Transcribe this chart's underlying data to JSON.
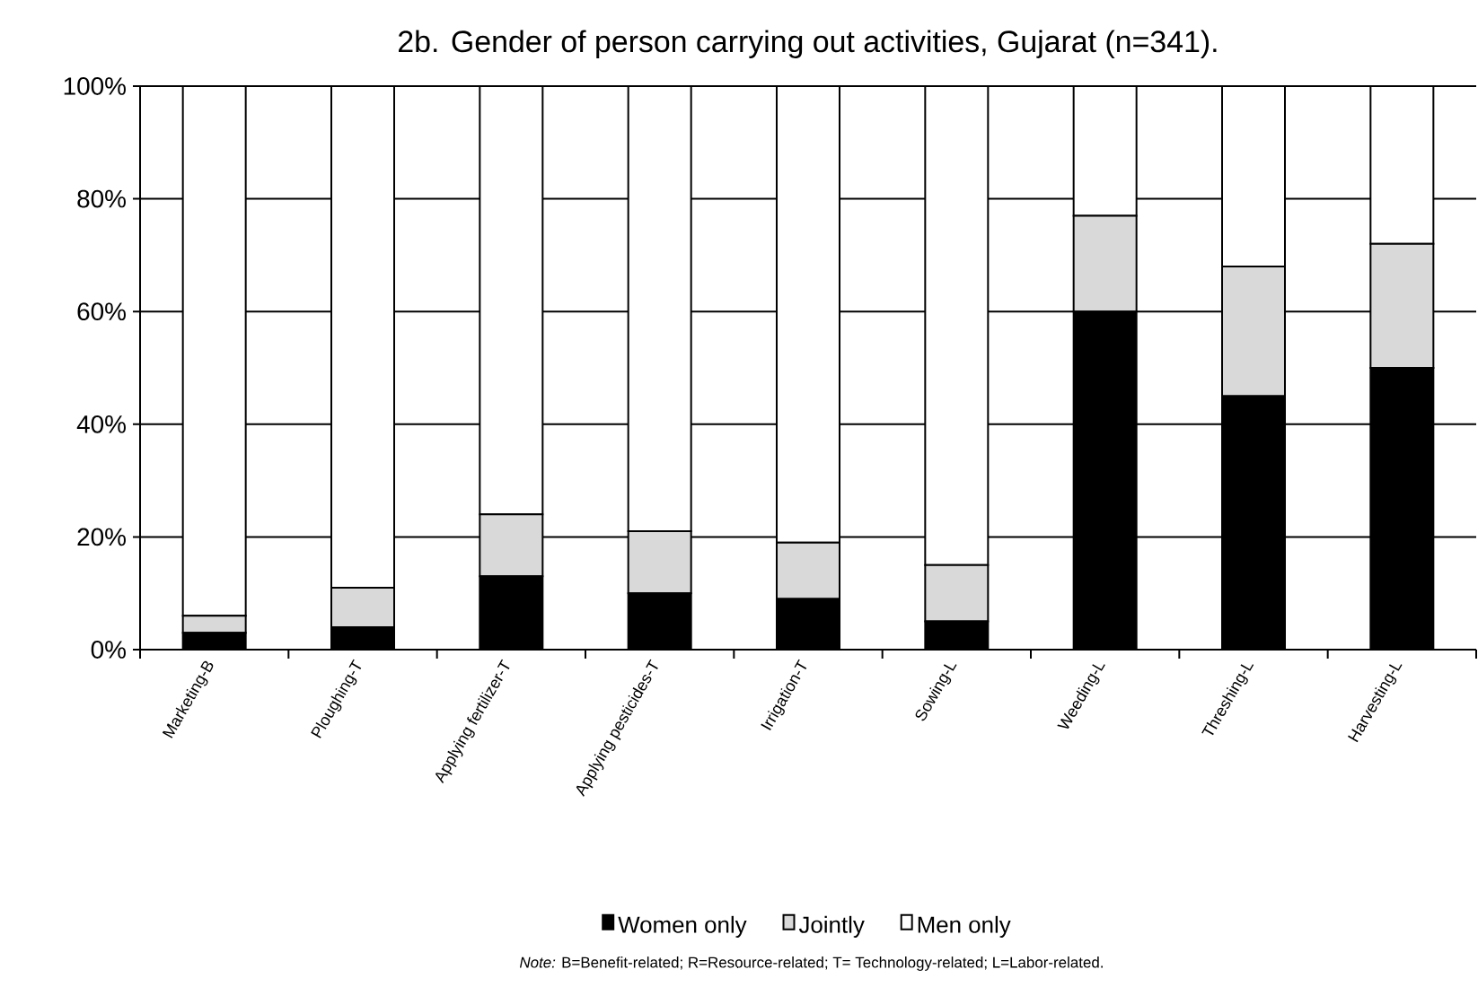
{
  "chart_data": {
    "type": "bar",
    "stacked": true,
    "title": "2b. Gender of person carrying out activities, Gujarat (n=341).",
    "categories": [
      "Marketing-B",
      "Ploughing-T",
      "Applying fertilizer-T",
      "Applying pesticides-T",
      "Irrigation-T",
      "Sowing-L",
      "Weeding-L",
      "Threshing-L",
      "Harvesting-L"
    ],
    "series": [
      {
        "name": "Women only",
        "color": "#000000",
        "values": [
          3,
          4,
          13,
          10,
          9,
          5,
          60,
          45,
          50
        ]
      },
      {
        "name": "Jointly",
        "color": "#d9d9d9",
        "values": [
          3,
          7,
          11,
          11,
          10,
          10,
          17,
          23,
          22
        ]
      },
      {
        "name": "Men only",
        "color": "#ffffff",
        "values": [
          94,
          89,
          76,
          79,
          81,
          85,
          23,
          32,
          28
        ]
      }
    ],
    "ylim": [
      0,
      100
    ],
    "yticks": [
      {
        "value": 0,
        "label": "0%"
      },
      {
        "value": 20,
        "label": "20%"
      },
      {
        "value": 40,
        "label": "40%"
      },
      {
        "value": 60,
        "label": "60%"
      },
      {
        "value": 80,
        "label": "80%"
      },
      {
        "value": 100,
        "label": "100%"
      }
    ],
    "grid": "y",
    "legend": "bottom",
    "annotations": [
      "*Note:* B=Benefit-related; R=Resource-related; T= Technology-related; L=Labor-related."
    ]
  }
}
